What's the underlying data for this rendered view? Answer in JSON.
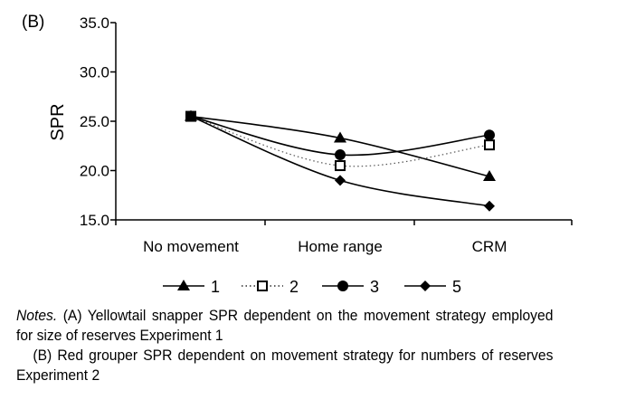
{
  "panel_label": "(B)",
  "chart_data": {
    "type": "line",
    "categories": [
      "No movement",
      "Home range",
      "CRM"
    ],
    "ylabel": "SPR",
    "xlabel": "",
    "ylim": [
      15.0,
      35.0
    ],
    "yticks": [
      "15.0",
      "20.0",
      "25.0",
      "30.0",
      "35.0"
    ],
    "grid": false,
    "legend_position": "bottom",
    "series": [
      {
        "name": "1",
        "marker": "triangle",
        "line": "solid",
        "values": [
          25.5,
          23.3,
          19.4
        ]
      },
      {
        "name": "2",
        "marker": "open-square",
        "line": "dotted",
        "values": [
          25.5,
          20.5,
          22.6
        ]
      },
      {
        "name": "3",
        "marker": "circle",
        "line": "solid",
        "values": [
          25.5,
          21.6,
          23.6
        ]
      },
      {
        "name": "5",
        "marker": "diamond",
        "line": "solid",
        "values": [
          25.5,
          19.0,
          16.4
        ]
      }
    ]
  },
  "notes": {
    "label": "Notes.",
    "line_a": "(A) Yellowtail snapper SPR dependent on the movement strategy employed for size of reserves Experiment 1",
    "line_b": "(B) Red grouper SPR dependent on movement strategy for numbers of reserves Experiment 2"
  }
}
